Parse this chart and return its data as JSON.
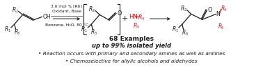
{
  "bg_color": "#ffffff",
  "fig_width": 3.78,
  "fig_height": 1.03,
  "dpi": 100,
  "red_color": "#cc0000",
  "black_color": "#1a1a1a",
  "reaction_line1": "3.0 mol % [Rh]",
  "reaction_line2": "Oxidant, Base",
  "reaction_line3": "Benzene, H₂O, 80 °C",
  "examples_text": "68 Examples",
  "yield_text": "up to 99% isolated yield",
  "bullet1": "• Reaction occurs with primary and secondary amines as well as anilines",
  "bullet2": "• Chemoselective for allylic alcohols and aldehydes"
}
